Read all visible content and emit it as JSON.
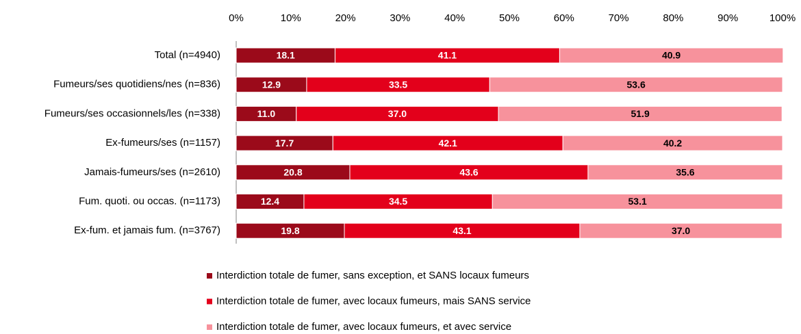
{
  "chart_data": {
    "type": "stacked-bar-horizontal",
    "categories": [
      "Total (n=4940)",
      "Fumeurs/ses quotidiens/nes  (n=836)",
      "Fumeurs/ses occasionnels/les  (n=338)",
      "Ex-fumeurs/ses (n=1157)",
      "Jamais-fumeurs/ses  (n=2610)",
      "Fum. quoti. ou occas.  (n=1173)",
      "Ex-fum. et jamais fum.  (n=3767)"
    ],
    "series": [
      {
        "name": "Interdiction totale de fumer, sans exception, et SANS locaux fumeurs",
        "color": "#9b0a1a",
        "values": [
          18.1,
          12.9,
          11,
          17.7,
          20.8,
          12.4,
          19.8
        ],
        "value_labels": [
          "18.1",
          "12.9",
          "11.0",
          "17.7",
          "20.8",
          "12.4",
          "19.8"
        ]
      },
      {
        "name": "Interdiction totale de fumer, avec locaux fumeurs, mais SANS service",
        "color": "#e3001b",
        "values": [
          41.1,
          33.5,
          37,
          42.1,
          43.6,
          34.5,
          43.1
        ],
        "value_labels": [
          "41.1",
          "33.5",
          "37.0",
          "42.1",
          "43.6",
          "34.5",
          "43.1"
        ]
      },
      {
        "name": "Interdiction totale de fumer, avec locaux fumeurs, et avec service",
        "color": "#f7929c",
        "values": [
          40.9,
          53.6,
          51.9,
          40.2,
          35.6,
          53.1,
          37
        ],
        "value_labels": [
          "40.9",
          "53.6",
          "51.9",
          "40.2",
          "35.6",
          "53.1",
          "37.0"
        ]
      }
    ],
    "xlim": [
      0,
      100
    ],
    "xticks": [
      {
        "value": 0,
        "label": "0%"
      },
      {
        "value": 10,
        "label": "10%"
      },
      {
        "value": 20,
        "label": "20%"
      },
      {
        "value": 30,
        "label": "30%"
      },
      {
        "value": 40,
        "label": "40%"
      },
      {
        "value": 50,
        "label": "50%"
      },
      {
        "value": 60,
        "label": "60%"
      },
      {
        "value": 70,
        "label": "70%"
      },
      {
        "value": 80,
        "label": "80%"
      },
      {
        "value": 90,
        "label": "90%"
      },
      {
        "value": 100,
        "label": "100%"
      }
    ]
  }
}
